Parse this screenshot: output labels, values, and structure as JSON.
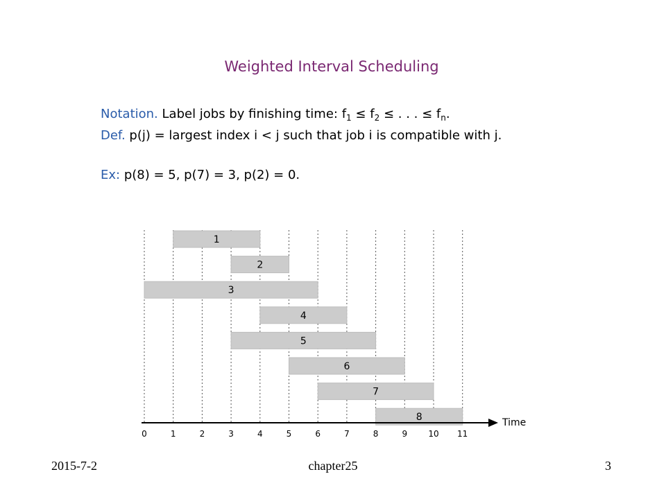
{
  "title": "Weighted Interval Scheduling",
  "notation": {
    "label": "Notation.",
    "text": "Label jobs by finishing time:",
    "f1": "f",
    "f1_sub": "1",
    "leq1": "≤",
    "f2": "f",
    "f2_sub": "2",
    "dots": "≤ . . . ≤",
    "fn": "f",
    "fn_sub": "n",
    "end": "."
  },
  "definition": {
    "label": "Def.",
    "text": "p(j) = largest index i < j such that job i is compatible with j."
  },
  "example": {
    "label": "Ex:",
    "text": "p(8) = 5, p(7) = 3, p(2) = 0."
  },
  "chart_data": {
    "type": "gantt",
    "x_axis_label": "Time",
    "ticks": [
      "0",
      "1",
      "2",
      "3",
      "4",
      "5",
      "6",
      "7",
      "8",
      "9",
      "10",
      "11"
    ],
    "jobs": [
      {
        "label": "1",
        "start": 1,
        "end": 4
      },
      {
        "label": "2",
        "start": 3,
        "end": 5
      },
      {
        "label": "3",
        "start": 0,
        "end": 6
      },
      {
        "label": "4",
        "start": 4,
        "end": 7
      },
      {
        "label": "5",
        "start": 3,
        "end": 8
      },
      {
        "label": "6",
        "start": 5,
        "end": 9
      },
      {
        "label": "7",
        "start": 6,
        "end": 10
      },
      {
        "label": "8",
        "start": 8,
        "end": 11
      }
    ],
    "bar_color": "#cccccc"
  },
  "footer": {
    "date": "2015-7-2",
    "chapter": "chapter25",
    "page": "3"
  }
}
